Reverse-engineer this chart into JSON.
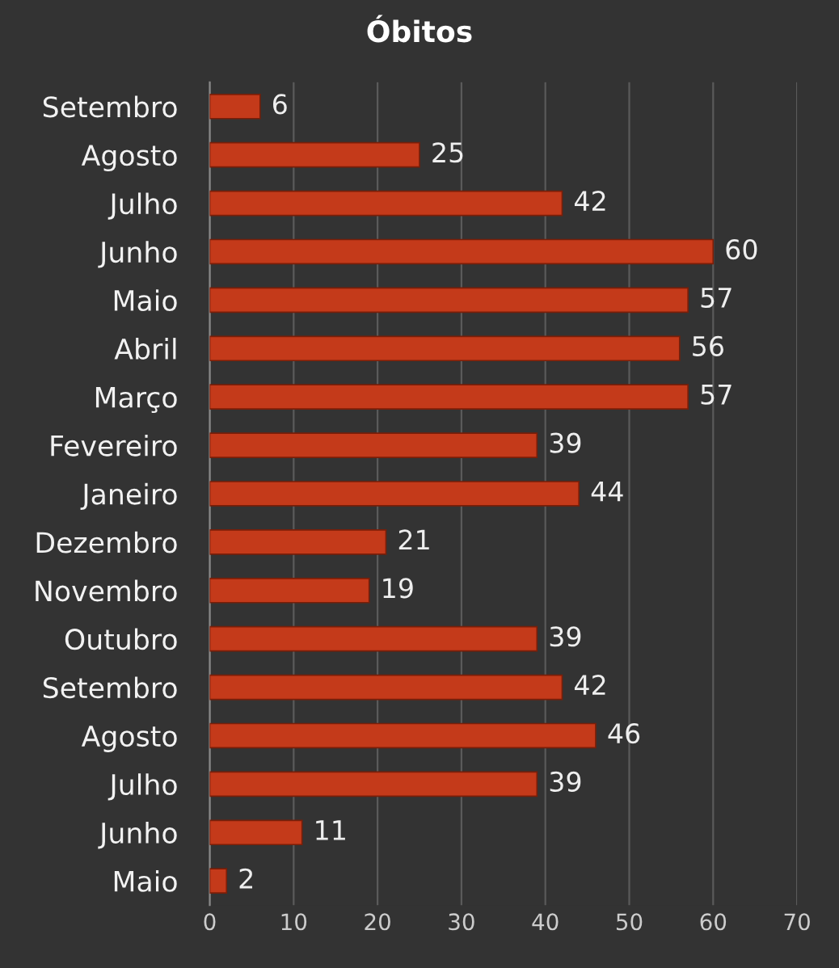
{
  "chart_data": {
    "type": "bar",
    "title": "Óbitos",
    "orientation": "horizontal",
    "categories": [
      "Setembro",
      "Agosto",
      "Julho",
      "Junho",
      "Maio",
      "Abril",
      "Março",
      "Fevereiro",
      "Janeiro",
      "Dezembro",
      "Novembro",
      "Outubro",
      "Setembro",
      "Agosto",
      "Julho",
      "Junho",
      "Maio"
    ],
    "values": [
      6,
      25,
      42,
      60,
      57,
      56,
      57,
      39,
      44,
      21,
      19,
      39,
      42,
      46,
      39,
      11,
      2
    ],
    "color": "#c43a1a",
    "xlim": [
      0,
      70
    ],
    "xticks": [
      0,
      10,
      20,
      30,
      40,
      50,
      60,
      70
    ],
    "grid": "x",
    "data_labels": true
  }
}
